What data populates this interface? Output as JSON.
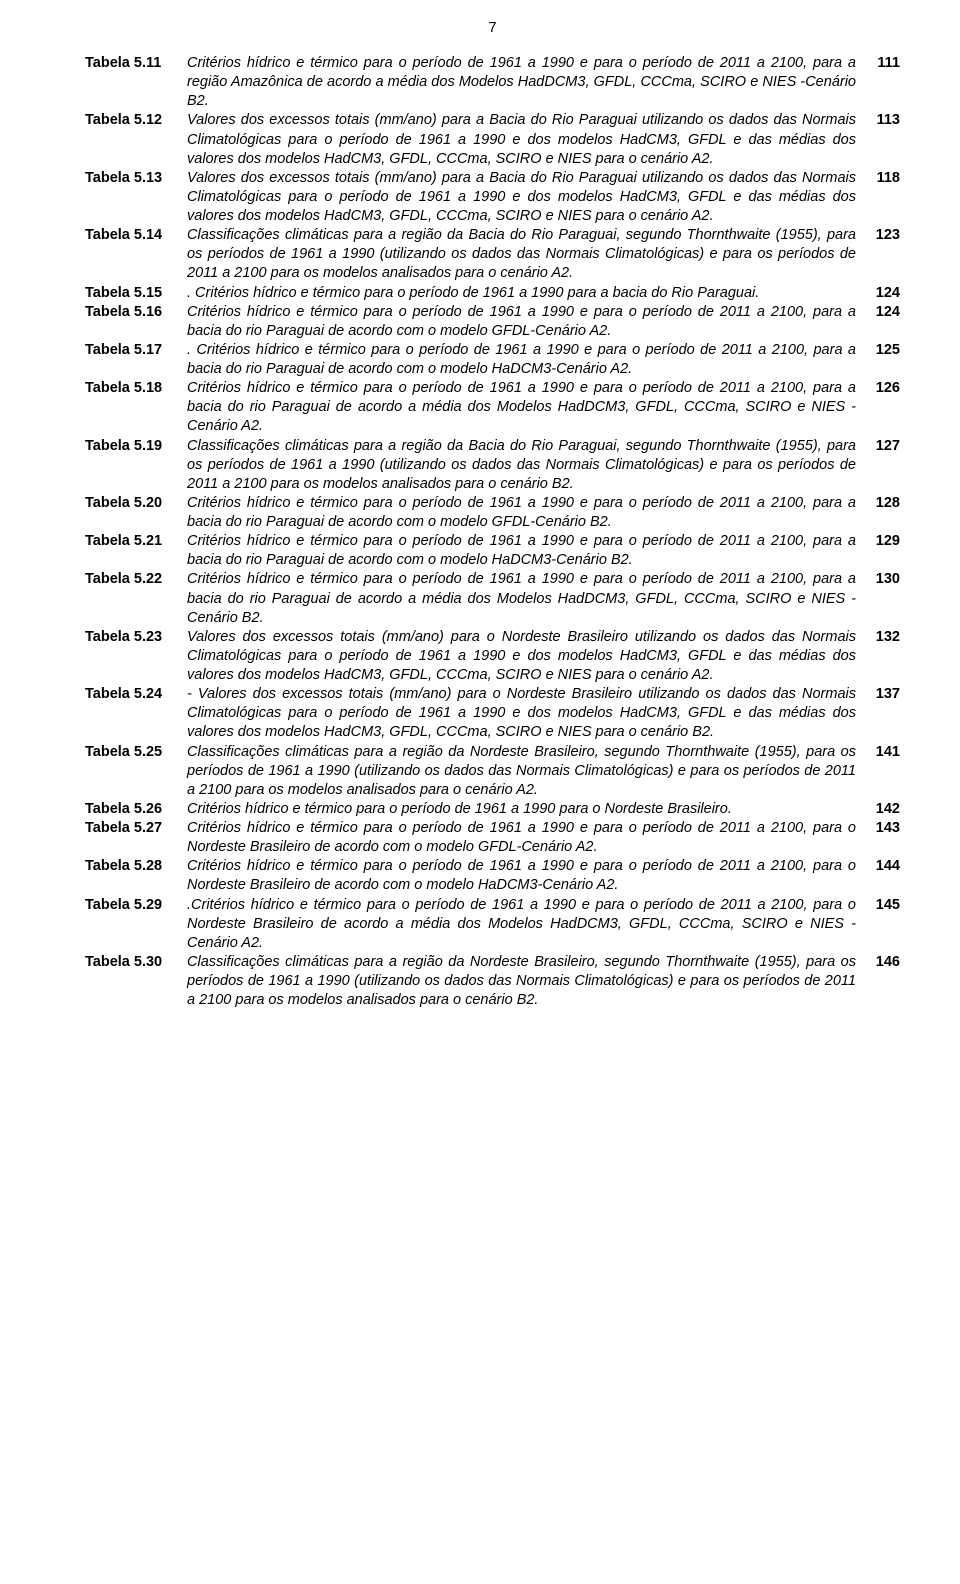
{
  "pageNumber": "7",
  "fontSize": 14.5,
  "textColor": "#000000",
  "bgColor": "#ffffff",
  "entries": [
    {
      "label": "Tabela 5.11",
      "desc": "Critérios hídrico e térmico para o período de 1961 a 1990 e para o período de 2011 a 2100, para a região Amazônica de acordo a média dos Modelos HadDCM3, GFDL, CCCma, SCIRO e NIES -Cenário B2.",
      "page": "111"
    },
    {
      "label": "Tabela 5.12",
      "desc": "Valores dos excessos totais (mm/ano) para a Bacia do Rio Paraguai utilizando os dados das Normais Climatológicas para o período de 1961 a 1990 e dos modelos HadCM3, GFDL e das médias dos valores dos modelos HadCM3, GFDL, CCCma, SCIRO e NIES para o cenário A2.",
      "page": "113"
    },
    {
      "label": "Tabela 5.13",
      "desc": "Valores dos excessos totais (mm/ano) para a Bacia do Rio Paraguai utilizando os dados das Normais Climatológicas para o período de 1961 a 1990 e dos modelos HadCM3, GFDL e das médias dos valores dos modelos HadCM3, GFDL, CCCma, SCIRO e NIES para o cenário A2.",
      "page": "118"
    },
    {
      "label": "Tabela 5.14",
      "desc": "Classificações climáticas para a região da Bacia do Rio Paraguai, segundo Thornthwaite (1955), para os períodos de 1961 a 1990 (utilizando os dados das Normais Climatológicas) e para os períodos de 2011 a 2100 para os modelos analisados para o cenário A2.",
      "page": "123"
    },
    {
      "label": "Tabela 5.15",
      "desc": ". Critérios hídrico e térmico para o período de 1961 a 1990 para a bacia do Rio Paraguai.",
      "page": "124"
    },
    {
      "label": "Tabela 5.16",
      "desc": "Critérios hídrico e térmico para o período de 1961 a 1990 e para o período de 2011 a 2100, para a bacia do rio Paraguai de acordo com o modelo GFDL-Cenário A2.",
      "page": "124"
    },
    {
      "label": "Tabela 5.17",
      "desc": ". Critérios hídrico e térmico para o período de 1961 a 1990 e para o período de 2011 a 2100, para a bacia do rio Paraguai de acordo com o modelo HaDCM3-Cenário A2.",
      "page": "125"
    },
    {
      "label": "Tabela 5.18",
      "desc": "Critérios hídrico e térmico para o período de 1961 a 1990 e para o período de 2011 a 2100, para a bacia do rio Paraguai de acordo a média dos Modelos HadDCM3, GFDL, CCCma, SCIRO e NIES -Cenário A2.",
      "page": "126"
    },
    {
      "label": "Tabela 5.19",
      "desc": "Classificações climáticas para a região da Bacia do Rio Paraguai, segundo Thornthwaite (1955), para os períodos de 1961 a 1990 (utilizando os dados das Normais Climatológicas) e para os períodos de 2011 a 2100 para os modelos analisados para o cenário B2.",
      "page": "127"
    },
    {
      "label": "Tabela 5.20",
      "desc": "Critérios hídrico e térmico para o período de 1961 a 1990 e para o período de 2011 a 2100, para a bacia do rio Paraguai de acordo com o modelo GFDL-Cenário B2.",
      "page": "128"
    },
    {
      "label": "Tabela 5.21",
      "desc": "Critérios hídrico e térmico para o período de 1961 a 1990 e para o período de 2011 a 2100, para a bacia do rio Paraguai de acordo com o modelo HaDCM3-Cenário B2.",
      "page": "129"
    },
    {
      "label": "Tabela 5.22",
      "desc": "Critérios hídrico e térmico para o período de 1961 a 1990 e para o período de 2011 a 2100, para a bacia do rio Paraguai de acordo a média dos Modelos HadDCM3, GFDL, CCCma, SCIRO e NIES -Cenário B2.",
      "page": "130"
    },
    {
      "label": "Tabela 5.23",
      "desc": "Valores dos excessos totais (mm/ano) para o Nordeste Brasileiro utilizando os dados das Normais Climatológicas para o período de 1961 a 1990 e dos modelos HadCM3, GFDL e das médias dos valores dos modelos HadCM3, GFDL, CCCma, SCIRO e NIES para o cenário A2.",
      "page": "132"
    },
    {
      "label": "Tabela 5.24",
      "desc": "- Valores dos excessos totais (mm/ano) para o Nordeste Brasileiro utilizando os dados das Normais Climatológicas para o período de 1961 a 1990 e dos modelos HadCM3, GFDL e das médias dos valores dos modelos HadCM3, GFDL, CCCma, SCIRO e NIES para o cenário B2.",
      "page": "137"
    },
    {
      "label": "Tabela 5.25",
      "desc": "Classificações climáticas para a região da Nordeste Brasileiro, segundo Thornthwaite (1955), para os períodos de 1961 a 1990 (utilizando os dados das Normais Climatológicas) e para os períodos de 2011 a 2100 para os modelos analisados para o cenário A2.",
      "page": "141"
    },
    {
      "label": "Tabela 5.26",
      "desc": "Critérios hídrico e térmico para o período de 1961 a 1990 para o Nordeste Brasileiro.",
      "page": "142"
    },
    {
      "label": "Tabela 5.27",
      "desc": "Critérios hídrico e térmico para o período de 1961 a 1990 e para o período de 2011 a 2100, para o Nordeste Brasileiro de acordo com o modelo GFDL-Cenário A2.",
      "page": "143"
    },
    {
      "label": "Tabela 5.28",
      "desc": "Critérios hídrico e térmico para o período de 1961 a 1990 e para o período de 2011 a 2100, para o Nordeste Brasileiro de acordo com o modelo HaDCM3-Cenário A2.",
      "page": "144"
    },
    {
      "label": "Tabela 5.29",
      "desc": ".Critérios hídrico e térmico para o período de 1961 a 1990 e para o período de 2011 a 2100, para o Nordeste Brasileiro de acordo a média dos Modelos HadDCM3, GFDL, CCCma, SCIRO e NIES -Cenário A2.",
      "page": "145"
    },
    {
      "label": "Tabela 5.30",
      "desc": "Classificações climáticas para a região da Nordeste Brasileiro, segundo Thornthwaite (1955), para os períodos de 1961 a 1990 (utilizando os dados das Normais Climatológicas) e para os períodos de 2011 a 2100 para os modelos analisados para o cenário B2.",
      "page": "146"
    }
  ]
}
